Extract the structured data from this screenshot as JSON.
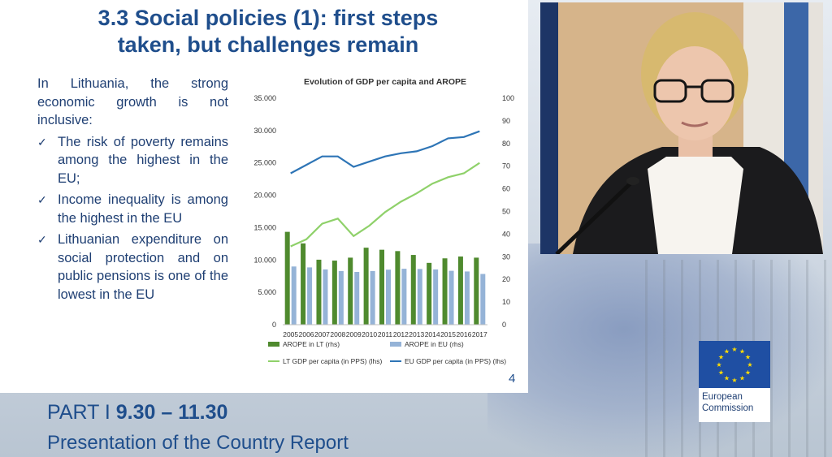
{
  "slide": {
    "title_line1": "3.3 Social policies (1): first steps",
    "title_line2": "taken, but challenges remain",
    "intro": "In Lithuania, the strong economic growth is not inclusive:",
    "bullets": [
      "The risk of poverty remains among the highest in the EU;",
      "Income inequality is among the highest in the EU",
      "Lithuanian expenditure on social protection and on public pensions is one of the lowest in the EU"
    ],
    "page_number": "4"
  },
  "footer": {
    "part": "PART I",
    "time": "9.30 – 11.30",
    "subtitle": "Presentation of the Country Report"
  },
  "logo": {
    "line1": "European",
    "line2": "Commission"
  },
  "colors": {
    "title_blue": "#1f4e8c",
    "arope_lt": "#4f8a2e",
    "arope_eu": "#95b3d7",
    "lt_gdp": "#8fd16a",
    "eu_gdp": "#2e75b6",
    "eu_flag": "#1f4fa3",
    "eu_star": "#ffdd00"
  },
  "icons": [
    "check-icon",
    "eu-flag-icon",
    "star-icon"
  ],
  "chart_data": {
    "type": "bar",
    "title": "Evolution of GDP per capita and AROPE",
    "categories": [
      "2005",
      "2006",
      "2007",
      "2008",
      "2009",
      "2010",
      "2011",
      "2012",
      "2013",
      "2014",
      "2015",
      "2016",
      "2017"
    ],
    "y_left": {
      "ylim": [
        0,
        35000
      ],
      "ticks": [
        "0",
        "5.000",
        "10.000",
        "15.000",
        "20.000",
        "25.000",
        "30.000",
        "35.000"
      ]
    },
    "y_right": {
      "ylim": [
        0,
        100
      ],
      "ticks": [
        "0",
        "10",
        "20",
        "30",
        "40",
        "50",
        "60",
        "70",
        "80",
        "90",
        "100"
      ]
    },
    "series": [
      {
        "name": "AROPE in LT (rhs)",
        "kind": "bar",
        "axis": "right",
        "color": "#4f8a2e",
        "values": [
          41.0,
          35.9,
          28.7,
          28.3,
          29.6,
          34.0,
          33.1,
          32.5,
          30.8,
          27.3,
          29.3,
          30.1,
          29.6
        ]
      },
      {
        "name": "AROPE in EU (rhs)",
        "kind": "bar",
        "axis": "right",
        "color": "#95b3d7",
        "values": [
          25.7,
          25.3,
          24.4,
          23.7,
          23.3,
          23.7,
          24.3,
          24.7,
          24.6,
          24.4,
          23.8,
          23.5,
          22.4
        ]
      },
      {
        "name": "LT GDP per capita (in PPS) (lhs)",
        "kind": "line",
        "axis": "left",
        "color": "#8fd16a",
        "values": [
          12100,
          13200,
          15600,
          16400,
          13700,
          15300,
          17400,
          19000,
          20300,
          21800,
          22800,
          23400,
          25000
        ]
      },
      {
        "name": "EU GDP per capita (in PPS) (lhs)",
        "kind": "line",
        "axis": "left",
        "color": "#2e75b6",
        "values": [
          23400,
          24700,
          26000,
          26000,
          24400,
          25200,
          26000,
          26500,
          26800,
          27600,
          28800,
          29000,
          29900
        ]
      }
    ],
    "legend_position": "bottom"
  }
}
